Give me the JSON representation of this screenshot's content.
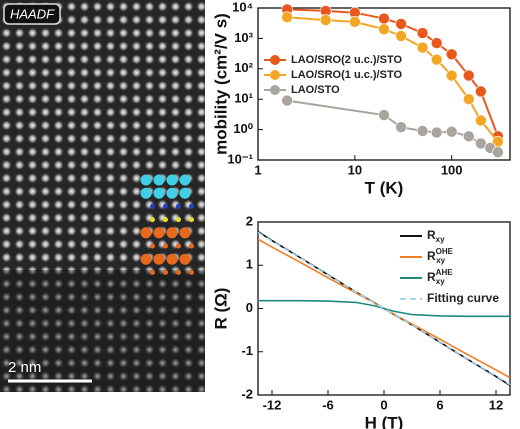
{
  "image_panel": {
    "label": "HAADF",
    "scale_bar": "2 nm"
  },
  "chart_data": [
    {
      "type": "line",
      "markers": true,
      "xlog": true,
      "ylog": true,
      "xlabel": "T (K)",
      "ylabel": "mobility (cm²/V s)",
      "xlim": [
        1,
        400
      ],
      "xticks": [
        1,
        10,
        100
      ],
      "ylim": [
        0.1,
        10000
      ],
      "yticks": [
        {
          "value": 0.1,
          "label": "10⁻¹"
        },
        {
          "value": 1,
          "label": "10⁰"
        },
        {
          "value": 10,
          "label": "10¹"
        },
        {
          "value": 100,
          "label": "10²"
        },
        {
          "value": 1000,
          "label": "10³"
        },
        {
          "value": 10000,
          "label": "10⁴"
        }
      ],
      "legend": "upper left",
      "series": [
        {
          "name": "LAO/SRO(2 u.c.)/STO",
          "color": "#e8571c",
          "x": [
            2,
            5,
            10,
            20,
            30,
            50,
            70,
            100,
            150,
            200,
            300
          ],
          "values": [
            9000,
            8000,
            7000,
            4500,
            3000,
            1500,
            700,
            300,
            60,
            18,
            0.6
          ]
        },
        {
          "name": "LAO/SRO(1 u.c.)/STO",
          "color": "#f2a623",
          "x": [
            2,
            5,
            10,
            20,
            30,
            50,
            70,
            100,
            150,
            200,
            300
          ],
          "values": [
            5000,
            4000,
            3500,
            2000,
            1200,
            500,
            200,
            60,
            10,
            2,
            0.4
          ]
        },
        {
          "name": "LAO/STO",
          "color": "#a9a49e",
          "x": [
            2,
            20,
            30,
            50,
            70,
            100,
            150,
            200,
            250,
            300
          ],
          "values": [
            9,
            3,
            1.2,
            0.9,
            0.8,
            0.85,
            0.6,
            0.35,
            0.25,
            0.18
          ]
        }
      ]
    },
    {
      "type": "line",
      "markers": false,
      "xlabel": "H (T)",
      "ylabel": "R (Ω)",
      "xlim": [
        -13.5,
        13.5
      ],
      "xticks": [
        -12,
        -6,
        0,
        6,
        12
      ],
      "ylim": [
        -2,
        2
      ],
      "yticks": [
        -2,
        -1,
        0,
        1,
        2
      ],
      "legend": "upper right",
      "x": [
        -13.5,
        -12,
        -9,
        -6,
        -3,
        -1,
        0,
        1,
        3,
        6,
        9,
        12,
        13.5
      ],
      "series": [
        {
          "name": "R",
          "sub": "xy",
          "color": "#111111",
          "style": "solid",
          "values": [
            1.78,
            1.57,
            1.18,
            0.78,
            0.38,
            0.13,
            0,
            -0.13,
            -0.38,
            -0.78,
            -1.18,
            -1.57,
            -1.78
          ]
        },
        {
          "name": "R",
          "sub": "xy",
          "sup": "OHE",
          "color": "#f07d20",
          "style": "solid",
          "values": [
            1.6,
            1.42,
            1.07,
            0.71,
            0.36,
            0.12,
            0,
            -0.12,
            -0.36,
            -0.71,
            -1.07,
            -1.42,
            -1.6
          ]
        },
        {
          "name": "R",
          "sub": "xy",
          "sup": "AHE",
          "color": "#1f8a80",
          "style": "solid",
          "values": [
            0.18,
            0.18,
            0.18,
            0.17,
            0.14,
            0.06,
            0,
            -0.06,
            -0.14,
            -0.17,
            -0.18,
            -0.18,
            -0.18
          ]
        },
        {
          "name": "Fitting curve",
          "color": "#a8d8ee",
          "style": "dashed",
          "values": [
            1.76,
            1.56,
            1.17,
            0.77,
            0.38,
            0.12,
            0,
            -0.12,
            -0.38,
            -0.77,
            -1.17,
            -1.56,
            -1.76
          ]
        }
      ]
    }
  ]
}
